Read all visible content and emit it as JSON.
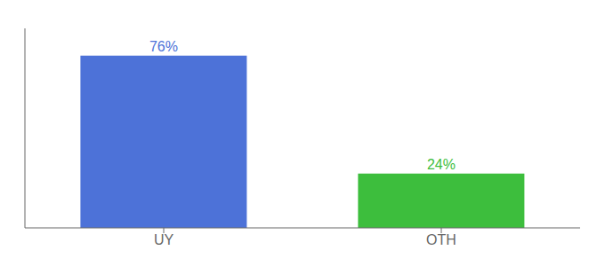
{
  "chart_data": {
    "type": "bar",
    "categories": [
      "UY",
      "OTH"
    ],
    "values": [
      76,
      24
    ],
    "value_labels": [
      "76%",
      "24%"
    ],
    "colors": [
      "#4d72d8",
      "#3dbe3d"
    ],
    "ylim": [
      0,
      88
    ],
    "data_labels": true,
    "tick_labels": "x"
  }
}
